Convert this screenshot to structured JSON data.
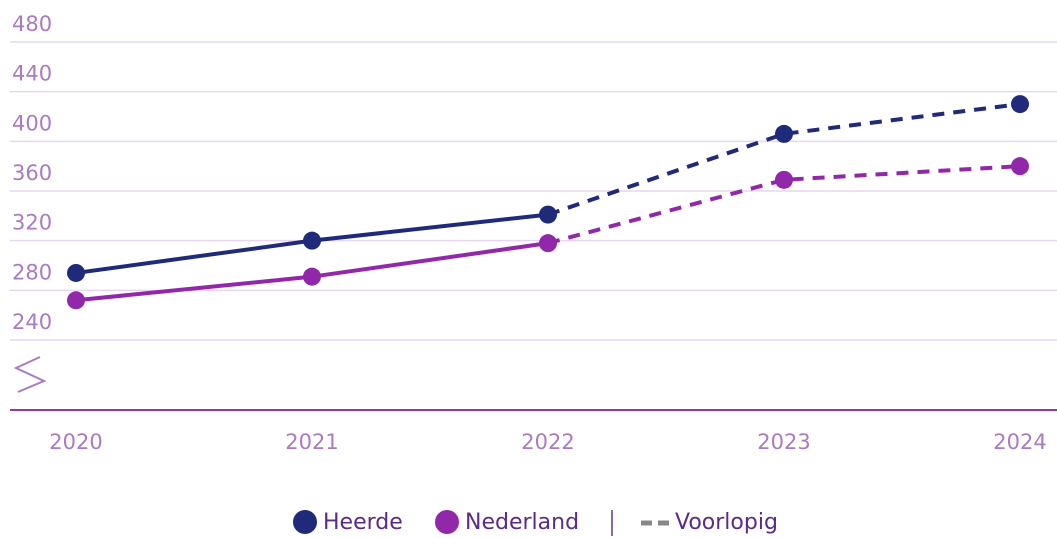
{
  "chart_data": {
    "type": "line",
    "categories": [
      "2020",
      "2021",
      "2022",
      "2023",
      "2024"
    ],
    "series": [
      {
        "name": "Heerde",
        "color": "#1f2a7a",
        "values": [
          294,
          320,
          341,
          406,
          430
        ]
      },
      {
        "name": "Nederland",
        "color": "#9128aa",
        "values": [
          272,
          291,
          318,
          369,
          380
        ]
      }
    ],
    "provisional_label": "Voorlopig",
    "provisional_from_index": 2,
    "ylim": [
      240,
      480
    ],
    "yticks": [
      240,
      280,
      320,
      360,
      400,
      440,
      480
    ],
    "grid": true
  }
}
